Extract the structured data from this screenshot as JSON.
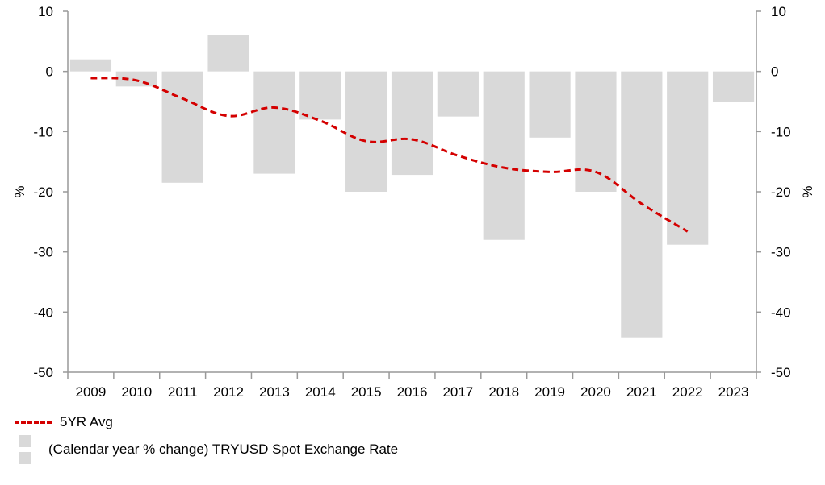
{
  "chart_data": {
    "type": "bar",
    "categories": [
      "2009",
      "2010",
      "2011",
      "2012",
      "2013",
      "2014",
      "2015",
      "2016",
      "2017",
      "2018",
      "2019",
      "2020",
      "2021",
      "2022",
      "2023"
    ],
    "series": [
      {
        "name": "(Calendar year % change) TRYUSD Spot Exchange Rate",
        "type": "bar",
        "color": "#d9d9d9",
        "values": [
          2.0,
          -2.5,
          -18.5,
          6.0,
          -17.0,
          -8.0,
          -20.0,
          -17.2,
          -7.5,
          -28.0,
          -11.0,
          -20.0,
          -44.2,
          -28.8,
          -5.0
        ]
      },
      {
        "name": "5YR Avg",
        "type": "line",
        "style": "dashed",
        "color": "#d40000",
        "values": [
          -1.1,
          -1.5,
          -4.5,
          -7.4,
          -6.0,
          -8.2,
          -11.6,
          -11.3,
          -14.0,
          -16.0,
          -16.7,
          -16.7,
          -22.0,
          -26.6,
          null
        ]
      }
    ],
    "ylabel": "%",
    "ylabel_right": "%",
    "ylim": [
      -50,
      10
    ],
    "yticks": [
      "10",
      "0",
      "-10",
      "-20",
      "-30",
      "-40",
      "-50"
    ],
    "ytick_values": [
      10,
      0,
      -10,
      -20,
      -30,
      -40,
      -50
    ],
    "grid": false,
    "legend_position": "bottom-left"
  }
}
